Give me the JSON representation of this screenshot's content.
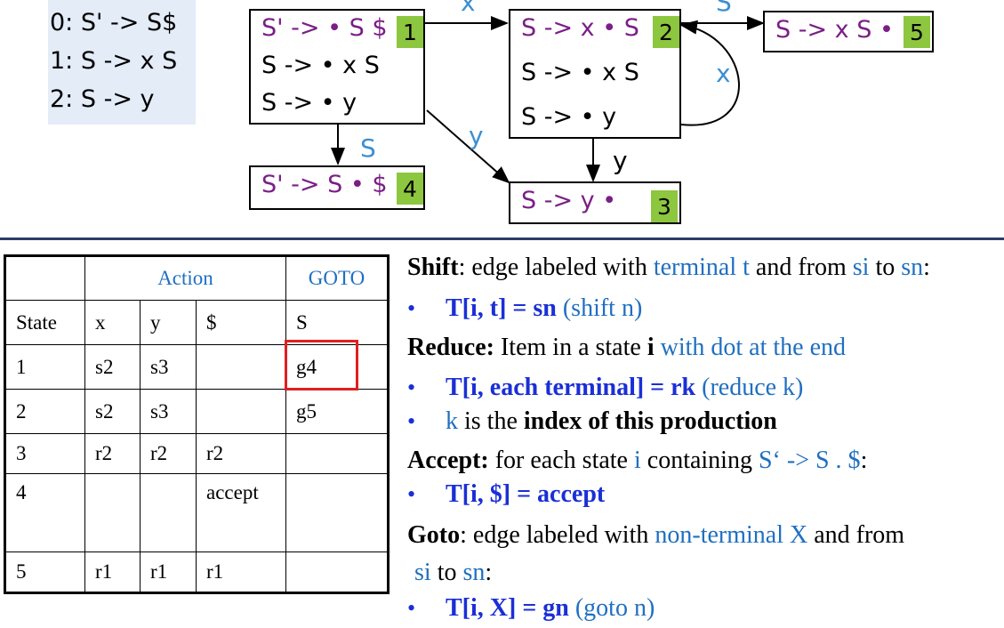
{
  "grammar": {
    "productions": [
      "0: S' -> S$",
      "1: S -> x S",
      "2: S -> y"
    ]
  },
  "states": {
    "s1": {
      "number": "1",
      "items": [
        "S' -> • S $",
        "S -> • x S",
        "S -> • y"
      ]
    },
    "s2": {
      "number": "2",
      "items": [
        "S -> x • S",
        "S -> • x S",
        "S -> • y"
      ]
    },
    "s3": {
      "number": "3",
      "items": [
        "S -> y •"
      ]
    },
    "s4": {
      "number": "4",
      "items": [
        "S' -> S • $"
      ]
    },
    "s5": {
      "number": "5",
      "items": [
        "S -> x S •"
      ]
    }
  },
  "edges": {
    "e12": "x",
    "e25": "S",
    "e22": "x",
    "e14": "S",
    "e13": "y",
    "e23": "y"
  },
  "table": {
    "action_header": "Action",
    "goto_header": "GOTO",
    "columns": [
      "State",
      "x",
      "y",
      "$",
      "S"
    ],
    "rows": [
      [
        "1",
        "s2",
        "s3",
        "",
        "g4"
      ],
      [
        "2",
        "s2",
        "s3",
        "",
        "g5"
      ],
      [
        "3",
        "r2",
        "r2",
        "r2",
        ""
      ],
      [
        "4",
        "",
        "",
        "accept",
        ""
      ],
      [
        "5",
        "r1",
        "r1",
        "r1",
        ""
      ]
    ]
  },
  "rules": {
    "shift": {
      "title": "Shift",
      "t1": ": edge labeled with ",
      "t2": "terminal t",
      "t3": " and from ",
      "t4": "si",
      "t5": " to ",
      "t6": "sn",
      "t7": ":"
    },
    "shift_b1": {
      "a": "T[i, t] = sn",
      "b": " (shift n)"
    },
    "reduce": {
      "title": "Reduce:",
      "t1": " Item in a state ",
      "t2": "i",
      "t3": " with dot at the end"
    },
    "reduce_b1": {
      "a": "T[i, each terminal] = rk",
      "b": " (reduce k)"
    },
    "reduce_b2": {
      "a": "k",
      "b": " is the ",
      "c": "index of this production"
    },
    "accept": {
      "title": "Accept:",
      "t1": " for each state ",
      "t2": "i",
      "t3": " containing ",
      "t4": "S‘ -> S . $",
      "t5": ":"
    },
    "accept_b1": {
      "a": "T[i, $] = accept"
    },
    "goto": {
      "title": "Goto",
      "t1": ": edge labeled with ",
      "t2": "non-terminal X",
      "t3": " and from"
    },
    "goto_l2": {
      "a": "si",
      "b": " to ",
      "c": "sn",
      "d": ":"
    },
    "goto_b1": {
      "a": "T[i, X] = gn",
      "b": " (goto n)"
    },
    "bullet": "•"
  },
  "colors": {
    "state_number_bg": "#8dc63f",
    "item_kernel": "#7a1f86",
    "edge_label": "#3d8fd1",
    "highlight": "#e02020"
  }
}
